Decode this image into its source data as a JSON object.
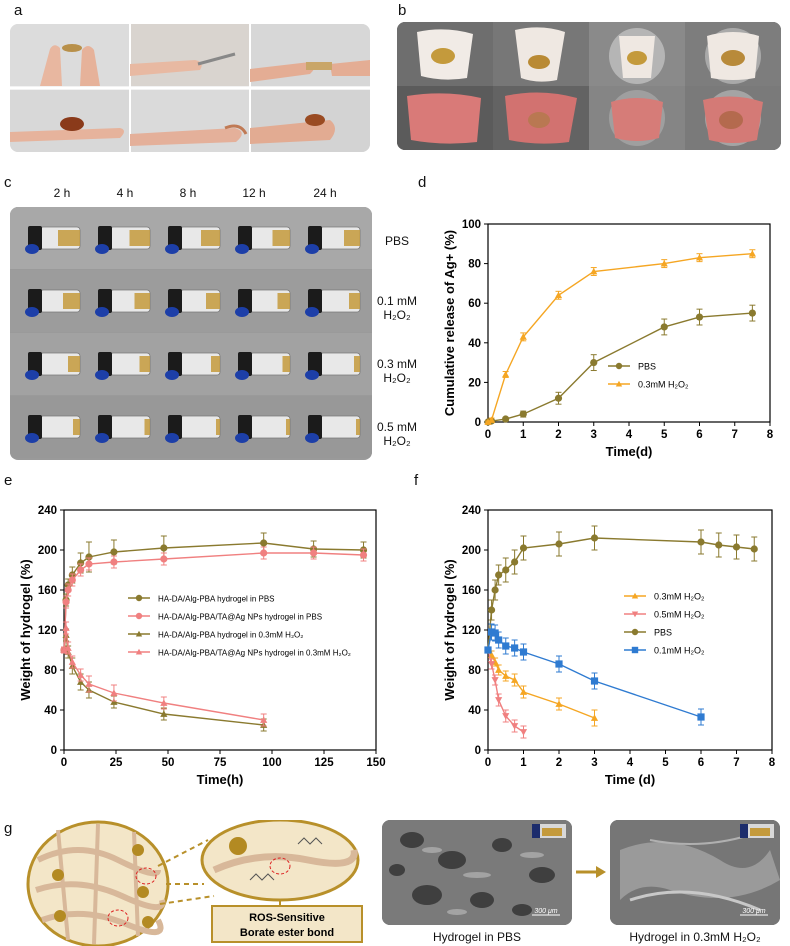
{
  "panels": {
    "a": "a",
    "b": "b",
    "c": "c",
    "d": "d",
    "e": "e",
    "f": "f",
    "g": "g"
  },
  "panel_c": {
    "times": [
      "2 h",
      "4 h",
      "8 h",
      "12 h",
      "24 h"
    ],
    "rows": [
      {
        "line1": "PBS",
        "line2": ""
      },
      {
        "line1": "0.1 mM",
        "line2": "H₂O₂"
      },
      {
        "line1": "0.3 mM",
        "line2": "H₂O₂"
      },
      {
        "line1": "0.5 mM",
        "line2": "H₂O₂"
      }
    ]
  },
  "panel_g": {
    "bond_label_1": "ROS-Sensitive",
    "bond_label_2": "Borate ester bond",
    "sem_left_caption": "Hydrogel in PBS",
    "sem_right_caption": "Hydrogel in 0.3mM H₂O₂",
    "scale_bar": "300 μm"
  },
  "colors": {
    "olive": "#8a7a2f",
    "orange": "#f5a623",
    "pink": "#f08080",
    "blue": "#2f7bd1",
    "gel": "#c49a3c",
    "tissue": "#d97a78"
  },
  "chart_data": [
    {
      "id": "d",
      "type": "line",
      "xlabel": "Time(d)",
      "ylabel": "Cumulative release of Ag+ (%)",
      "xlim": [
        0,
        8
      ],
      "ylim": [
        0,
        100
      ],
      "xticks": [
        0,
        1,
        2,
        3,
        4,
        5,
        6,
        7,
        8
      ],
      "yticks": [
        0,
        20,
        40,
        60,
        80,
        100
      ],
      "legend_position": "center-right",
      "series": [
        {
          "name": "PBS",
          "color": "#8a7a2f",
          "marker": "circle",
          "x": [
            0,
            0.1,
            0.5,
            1,
            2,
            3,
            5,
            6,
            7.5
          ],
          "y": [
            0,
            0.5,
            1.5,
            4,
            12,
            30,
            48,
            53,
            55
          ],
          "err": [
            0.5,
            0.5,
            0.8,
            1.5,
            3,
            4,
            4,
            4,
            4
          ]
        },
        {
          "name": "0.3mM H₂O₂",
          "color": "#f5a623",
          "marker": "triangle",
          "x": [
            0,
            0.1,
            0.5,
            1,
            2,
            3,
            5,
            6,
            7.5
          ],
          "y": [
            0,
            1,
            24,
            43,
            64,
            76,
            80,
            83,
            85
          ],
          "err": [
            0.5,
            1,
            1.5,
            2,
            2,
            2,
            2,
            2,
            2
          ]
        }
      ]
    },
    {
      "id": "e",
      "type": "line",
      "xlabel": "Time(h)",
      "ylabel": "Weight of hydrogel (%)",
      "xlim": [
        0,
        150
      ],
      "ylim": [
        0,
        240
      ],
      "xticks": [
        0,
        25,
        50,
        75,
        100,
        125,
        150
      ],
      "yticks": [
        0,
        40,
        80,
        120,
        160,
        200,
        240
      ],
      "legend_position": "center",
      "series": [
        {
          "name": "HA-DA/Alg-PBA hydrogel in PBS",
          "color": "#8a7a2f",
          "marker": "circle",
          "x": [
            0,
            1,
            2,
            4,
            8,
            12,
            24,
            48,
            96,
            120,
            144
          ],
          "y": [
            100,
            150,
            165,
            175,
            187,
            193,
            198,
            202,
            207,
            201,
            200
          ],
          "err": [
            3,
            6,
            6,
            8,
            10,
            15,
            12,
            12,
            10,
            8,
            8
          ]
        },
        {
          "name": "HA-DA/Alg-PBA/TA@Ag NPs hydrogel in PBS",
          "color": "#f08080",
          "marker": "circle",
          "x": [
            0,
            1,
            2,
            4,
            8,
            12,
            24,
            48,
            96,
            120,
            144
          ],
          "y": [
            100,
            148,
            160,
            170,
            180,
            186,
            188,
            191,
            197,
            197,
            195
          ],
          "err": [
            3,
            6,
            6,
            6,
            6,
            6,
            6,
            6,
            6,
            6,
            6
          ]
        },
        {
          "name": "HA-DA/Alg-PBA hydrogel in 0.3mM H₂O₂",
          "color": "#8a7a2f",
          "marker": "triangle",
          "x": [
            0,
            1,
            2,
            4,
            8,
            12,
            24,
            48,
            96
          ],
          "y": [
            100,
            115,
            98,
            84,
            68,
            60,
            48,
            36,
            25
          ],
          "err": [
            3,
            6,
            6,
            8,
            8,
            8,
            6,
            6,
            6
          ]
        },
        {
          "name": "HA-DA/Alg-PBA/TA@Ag NPs hydrogel in 0.3mM H₂O₂",
          "color": "#f08080",
          "marker": "triangle",
          "x": [
            0,
            1,
            2,
            4,
            8,
            12,
            24,
            48,
            96
          ],
          "y": [
            100,
            122,
            102,
            88,
            75,
            66,
            57,
            47,
            30
          ],
          "err": [
            3,
            6,
            6,
            6,
            6,
            8,
            8,
            6,
            6
          ]
        }
      ]
    },
    {
      "id": "f",
      "type": "line",
      "xlabel": "Time (d)",
      "ylabel": "Weight of hydrogel (%)",
      "xlim": [
        0,
        8
      ],
      "ylim": [
        0,
        240
      ],
      "xticks": [
        0,
        1,
        2,
        3,
        4,
        5,
        6,
        7,
        8
      ],
      "yticks": [
        0,
        40,
        80,
        120,
        160,
        200,
        240
      ],
      "legend_position": "center-right",
      "series": [
        {
          "name": "0.3mM H₂O₂",
          "color": "#f5a623",
          "marker": "triangle",
          "x": [
            0,
            0.1,
            0.2,
            0.3,
            0.5,
            0.75,
            1,
            2,
            3
          ],
          "y": [
            100,
            95,
            88,
            80,
            74,
            70,
            58,
            46,
            32
          ],
          "err": [
            3,
            4,
            4,
            5,
            5,
            6,
            6,
            6,
            8
          ]
        },
        {
          "name": "0.5mM H₂O₂",
          "color": "#f08080",
          "marker": "tri-down",
          "x": [
            0,
            0.1,
            0.2,
            0.3,
            0.5,
            0.75,
            1
          ],
          "y": [
            100,
            86,
            70,
            50,
            34,
            24,
            18
          ],
          "err": [
            3,
            5,
            5,
            6,
            6,
            6,
            6
          ]
        },
        {
          "name": "PBS",
          "color": "#8a7a2f",
          "marker": "circle",
          "x": [
            0,
            0.1,
            0.2,
            0.3,
            0.5,
            0.75,
            1,
            2,
            3,
            6,
            6.5,
            7,
            7.5
          ],
          "y": [
            100,
            140,
            160,
            175,
            180,
            188,
            202,
            206,
            212,
            208,
            205,
            203,
            201
          ],
          "err": [
            3,
            10,
            10,
            10,
            12,
            12,
            12,
            12,
            12,
            12,
            12,
            12,
            12
          ]
        },
        {
          "name": "0.1mM H₂O₂",
          "color": "#2f7bd1",
          "marker": "square",
          "x": [
            0,
            0.1,
            0.2,
            0.3,
            0.5,
            0.75,
            1,
            2,
            3,
            6
          ],
          "y": [
            100,
            118,
            117,
            110,
            104,
            102,
            98,
            86,
            69,
            33
          ],
          "err": [
            3,
            8,
            8,
            8,
            8,
            8,
            8,
            8,
            8,
            8
          ]
        }
      ]
    }
  ]
}
